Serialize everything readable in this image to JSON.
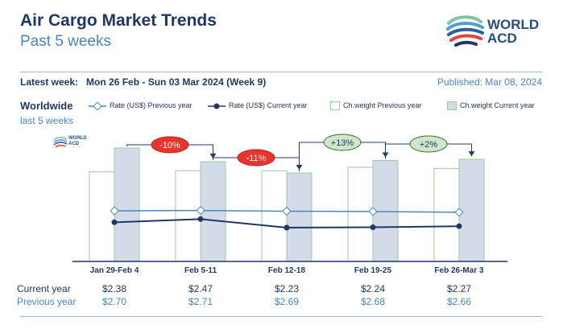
{
  "header": {
    "title": "Air Cargo Market Trends",
    "subtitle": "Past 5 weeks",
    "logo_line1": "WORLD",
    "logo_line2": "ACD"
  },
  "info": {
    "latest_label": "Latest week:",
    "latest_value": "Mon 26 Feb - Sun 03 Mar 2024 (Week 9)",
    "published": "Published: Mar 08, 2024"
  },
  "region": {
    "name": "Worldwide",
    "period": "last 5 weeks"
  },
  "legend": {
    "rate_prev": "Rate (US$) Previous year",
    "rate_cur": "Rate (US$) Current year",
    "weight_prev": "Ch.weight Previous year",
    "weight_cur": "Ch.weight Current year"
  },
  "table": {
    "current_label": "Current year",
    "previous_label": "Previous year",
    "current_values": [
      "$2.38",
      "$2.47",
      "$2.23",
      "$2.24",
      "$2.27"
    ],
    "previous_values": [
      "$2.70",
      "$2.71",
      "$2.69",
      "$2.68",
      "$2.66"
    ]
  },
  "colors": {
    "navy": "#1f3864",
    "light_blue": "#4a86c5",
    "bar_current_fill": "#d3dbe8",
    "bar_prev_fill": "#ffffff",
    "bar_border": "#9ccb9c",
    "badge_negative": "#e8342c",
    "badge_positive": "#cfe6c7"
  },
  "chart_data": {
    "type": "bar",
    "categories": [
      "Jan 29-Feb 4",
      "Feb 5-11",
      "Feb 12-18",
      "Feb 19-25",
      "Feb 26-Mar 3"
    ],
    "series": [
      {
        "name": "Ch.weight Previous year",
        "kind": "bar",
        "values": [
          0.79,
          0.8,
          0.8,
          0.83,
          0.82
        ]
      },
      {
        "name": "Ch.weight Current year",
        "kind": "bar",
        "values": [
          1.0,
          0.88,
          0.78,
          0.89,
          0.9
        ]
      },
      {
        "name": "Rate (US$) Previous year",
        "kind": "line",
        "values": [
          2.7,
          2.71,
          2.69,
          2.68,
          2.66
        ]
      },
      {
        "name": "Rate (US$) Current year",
        "kind": "line",
        "values": [
          2.38,
          2.47,
          2.23,
          2.24,
          2.27
        ]
      }
    ],
    "changes": [
      "-10%",
      "-11%",
      "+13%",
      "+2%"
    ],
    "weight_note": "chargeable weight bars shown relative (unlabeled axis)",
    "rate_axis": [
      0,
      5
    ]
  }
}
